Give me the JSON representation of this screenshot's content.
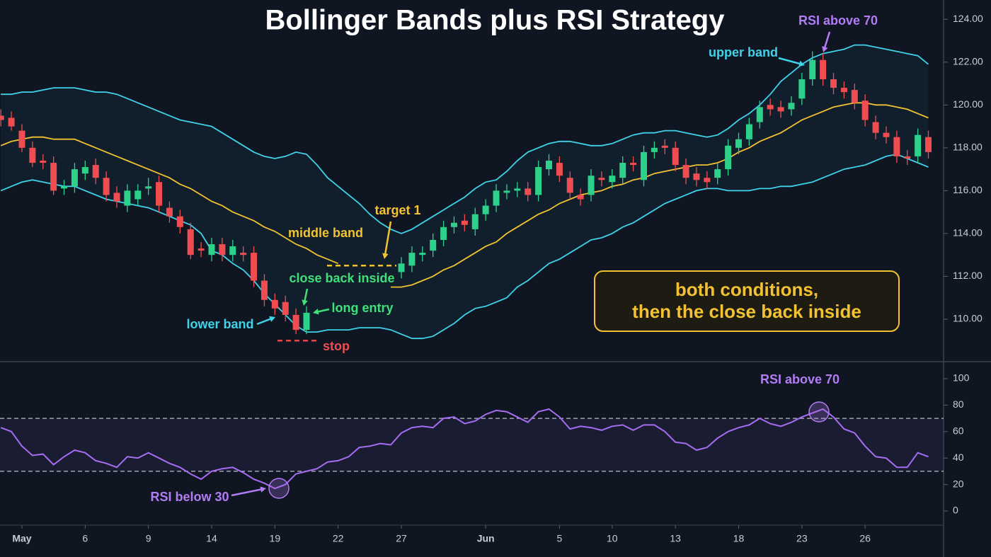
{
  "chart_data": [
    {
      "type": "candlestick",
      "title": "Bollinger Bands plus RSI Strategy",
      "up_color": "#2ed18a",
      "down_color": "#ef4d52",
      "open": [
        119.5,
        119.4,
        118.8,
        118.0,
        117.4,
        117.3,
        116.1,
        116.2,
        116.8,
        117.2,
        116.6,
        115.9,
        115.3,
        115.6,
        116.1,
        116.4,
        115.2,
        114.8,
        114.2,
        113.3,
        113.0,
        113.5,
        113.0,
        113.1,
        113.1,
        111.8,
        110.9,
        110.8,
        110.2,
        109.5,
        null,
        null,
        null,
        null,
        null,
        null,
        null,
        null,
        112.2,
        112.5,
        113.0,
        113.2,
        113.7,
        114.3,
        114.6,
        114.2,
        114.9,
        115.3,
        115.9,
        116.0,
        116.1,
        115.8,
        117.0,
        117.3,
        116.6,
        115.8,
        115.8,
        116.6,
        116.4,
        116.6,
        117.3,
        116.5,
        117.8,
        118.1,
        118.0,
        117.2,
        116.8,
        116.6,
        116.6,
        117.0,
        118.0,
        118.4,
        119.2,
        120.0,
        119.9,
        119.8,
        120.3,
        121.2,
        122.1,
        121.2,
        120.8,
        120.7,
        120.2,
        119.2,
        118.7,
        118.5,
        117.6,
        117.6,
        118.5
      ],
      "high": [
        119.8,
        119.7,
        119.1,
        118.3,
        117.7,
        117.6,
        116.5,
        117.3,
        117.4,
        117.5,
        116.9,
        116.2,
        116.3,
        116.3,
        116.6,
        116.7,
        115.5,
        115.1,
        114.5,
        113.6,
        113.8,
        113.8,
        113.7,
        113.4,
        113.4,
        112.1,
        111.2,
        111.1,
        110.5,
        110.6,
        null,
        null,
        null,
        null,
        null,
        null,
        null,
        null,
        112.9,
        113.4,
        113.4,
        114.0,
        114.6,
        114.8,
        114.9,
        115.2,
        115.6,
        116.3,
        116.3,
        116.4,
        116.4,
        117.4,
        117.7,
        117.6,
        116.9,
        116.1,
        117.0,
        116.9,
        117.0,
        117.6,
        117.6,
        118.1,
        118.3,
        118.4,
        118.3,
        117.5,
        117.1,
        116.9,
        117.3,
        118.4,
        118.7,
        119.4,
        120.2,
        120.3,
        120.2,
        120.4,
        121.5,
        122.5,
        122.4,
        121.5,
        121.1,
        121.0,
        120.5,
        119.5,
        119.0,
        118.8,
        117.9,
        118.9,
        118.8
      ],
      "low": [
        119.0,
        118.8,
        117.8,
        117.1,
        117.0,
        115.8,
        115.8,
        115.9,
        116.5,
        116.3,
        115.5,
        115.2,
        115.0,
        115.3,
        115.8,
        115.0,
        114.5,
        114.0,
        112.8,
        112.9,
        112.7,
        112.7,
        112.7,
        112.7,
        111.5,
        110.6,
        110.2,
        109.9,
        109.3,
        109.3,
        null,
        null,
        null,
        null,
        null,
        null,
        null,
        null,
        111.9,
        112.2,
        112.7,
        112.9,
        113.4,
        114.0,
        114.1,
        113.9,
        114.6,
        115.0,
        115.6,
        115.7,
        115.5,
        115.5,
        116.7,
        116.4,
        115.6,
        115.3,
        115.5,
        116.2,
        116.1,
        116.3,
        116.9,
        116.2,
        117.5,
        117.7,
        116.9,
        116.3,
        116.2,
        116.1,
        116.3,
        116.7,
        117.7,
        118.1,
        118.9,
        119.5,
        119.4,
        119.5,
        120.0,
        120.9,
        120.9,
        120.5,
        120.3,
        119.8,
        119.0,
        118.4,
        118.2,
        117.3,
        117.2,
        117.3,
        117.5
      ],
      "close": [
        119.3,
        119.0,
        118.0,
        117.3,
        117.3,
        116.0,
        116.2,
        117.0,
        117.1,
        116.6,
        115.8,
        115.5,
        116.0,
        116.0,
        116.2,
        115.3,
        114.8,
        114.3,
        113.0,
        113.2,
        113.5,
        113.0,
        113.4,
        113.0,
        111.8,
        110.9,
        110.5,
        110.2,
        109.5,
        110.3,
        null,
        null,
        null,
        null,
        null,
        null,
        null,
        null,
        112.6,
        113.1,
        113.1,
        113.7,
        114.3,
        114.5,
        114.4,
        114.9,
        115.3,
        116.0,
        116.0,
        116.1,
        115.8,
        117.1,
        117.4,
        116.7,
        115.9,
        115.6,
        116.7,
        116.5,
        116.7,
        117.3,
        117.2,
        117.8,
        118.0,
        118.0,
        117.2,
        116.6,
        116.5,
        116.4,
        117.0,
        118.1,
        118.4,
        119.1,
        119.9,
        119.8,
        119.7,
        120.1,
        121.2,
        122.1,
        121.2,
        120.8,
        120.6,
        120.1,
        119.3,
        118.7,
        118.5,
        117.6,
        117.5,
        118.6,
        117.8
      ],
      "bands": [
        {
          "color": "#3fd2e8",
          "values": [
            120.5,
            120.5,
            120.6,
            120.6,
            120.7,
            120.8,
            120.8,
            120.8,
            120.7,
            120.6,
            120.6,
            120.5,
            120.3,
            120.1,
            119.9,
            119.7,
            119.5,
            119.3,
            119.2,
            119.1,
            119.0,
            118.7,
            118.4,
            118.1,
            117.8,
            117.6,
            117.5,
            117.6,
            117.8,
            117.7,
            117.2,
            116.6,
            116.2,
            115.8,
            115.4,
            114.9,
            114.5,
            114.2,
            114.0,
            114.2,
            114.5,
            114.8,
            115.1,
            115.4,
            115.7,
            116.1,
            116.4,
            116.5,
            116.9,
            117.4,
            117.8,
            118.0,
            118.2,
            118.3,
            118.3,
            118.2,
            118.1,
            118.1,
            118.2,
            118.4,
            118.6,
            118.7,
            118.7,
            118.8,
            118.8,
            118.7,
            118.6,
            118.5,
            118.6,
            118.9,
            119.3,
            119.6,
            120.0,
            120.5,
            121.1,
            121.5,
            121.9,
            122.2,
            122.4,
            122.5,
            122.6,
            122.8,
            122.8,
            122.7,
            122.6,
            122.5,
            122.4,
            122.3,
            121.9
          ]
        },
        {
          "color": "#f2c232",
          "values": [
            118.1,
            118.3,
            118.4,
            118.5,
            118.5,
            118.4,
            118.4,
            118.4,
            118.2,
            118.0,
            117.8,
            117.6,
            117.4,
            117.2,
            117.0,
            116.8,
            116.6,
            116.3,
            116.1,
            115.8,
            115.5,
            115.3,
            115.0,
            114.8,
            114.6,
            114.3,
            114.1,
            113.8,
            113.5,
            113.3,
            113.0,
            112.8,
            112.6,
            null,
            null,
            null,
            null,
            111.5,
            111.5,
            111.6,
            111.8,
            112.0,
            112.3,
            112.5,
            112.8,
            113.1,
            113.4,
            113.6,
            114.0,
            114.3,
            114.6,
            114.9,
            115.1,
            115.4,
            115.6,
            115.8,
            115.9,
            116.0,
            116.2,
            116.3,
            116.5,
            116.6,
            116.8,
            116.9,
            117.0,
            117.1,
            117.2,
            117.2,
            117.3,
            117.5,
            117.8,
            118.0,
            118.3,
            118.5,
            118.7,
            119.0,
            119.3,
            119.5,
            119.7,
            119.9,
            120.0,
            120.1,
            120.1,
            120.0,
            120.0,
            119.9,
            119.8,
            119.6,
            119.4
          ]
        },
        {
          "color": "#3fd2e8",
          "values": [
            116.0,
            116.2,
            116.4,
            116.5,
            116.4,
            116.3,
            116.2,
            116.2,
            116.0,
            115.8,
            115.6,
            115.5,
            115.4,
            115.3,
            115.2,
            115.0,
            114.8,
            114.6,
            114.4,
            114.0,
            113.2,
            113.0,
            112.6,
            112.3,
            111.8,
            111.2,
            110.7,
            110.2,
            109.7,
            109.4,
            109.4,
            109.5,
            109.5,
            109.5,
            109.6,
            109.6,
            109.6,
            109.5,
            109.3,
            109.1,
            109.1,
            109.2,
            109.5,
            109.8,
            110.2,
            110.5,
            110.6,
            110.8,
            111.0,
            111.5,
            111.8,
            112.2,
            112.6,
            112.8,
            113.1,
            113.4,
            113.7,
            113.8,
            114.0,
            114.3,
            114.5,
            114.8,
            115.1,
            115.4,
            115.6,
            115.8,
            116.0,
            116.1,
            116.1,
            116.0,
            116.0,
            116.0,
            116.1,
            116.1,
            116.2,
            116.2,
            116.3,
            116.4,
            116.6,
            116.8,
            117.0,
            117.1,
            117.2,
            117.4,
            117.6,
            117.7,
            117.5,
            117.3,
            117.1
          ]
        }
      ],
      "levels": [
        {
          "value": 112.5,
          "color": "#f2c232"
        },
        {
          "value": 109.0,
          "color": "#e04848"
        }
      ],
      "ylim": [
        108.05,
        124.9
      ],
      "yticks": [
        {
          "value": 110,
          "label": "110.00"
        },
        {
          "value": 112,
          "label": "112.00"
        },
        {
          "value": 114,
          "label": "114.00"
        },
        {
          "value": 116,
          "label": "116.00"
        },
        {
          "value": 118,
          "label": "118.00"
        },
        {
          "value": 120,
          "label": "120.00"
        },
        {
          "value": 122,
          "label": "122.00"
        },
        {
          "value": 124,
          "label": "124.00"
        }
      ],
      "annotations": [
        {
          "text": "upper band",
          "color": "#3fd2e8"
        },
        {
          "text": "middle band",
          "color": "#f2c232"
        },
        {
          "text": "target 1",
          "color": "#f2c232"
        },
        {
          "text": "close back inside",
          "color": "#3fe07a"
        },
        {
          "text": "long entry",
          "color": "#3fe07a"
        },
        {
          "text": "lower band",
          "color": "#3fd2e8"
        },
        {
          "text": "stop",
          "color": "#ef4d52"
        },
        {
          "text": "RSI above 70",
          "color": "#b27cf5"
        }
      ],
      "callout": [
        "both conditions,",
        "then the close back inside"
      ],
      "callout_color": "#f2c232"
    },
    {
      "type": "line",
      "categories": [
        null,
        null,
        "May",
        null,
        null,
        null,
        null,
        null,
        "6",
        null,
        null,
        null,
        null,
        null,
        "9",
        null,
        null,
        null,
        null,
        null,
        "14",
        null,
        null,
        null,
        null,
        null,
        "19",
        null,
        null,
        null,
        null,
        null,
        "22",
        null,
        null,
        null,
        null,
        null,
        "27",
        null,
        null,
        null,
        null,
        null,
        null,
        null,
        "Jun",
        null,
        null,
        null,
        null,
        null,
        null,
        "5",
        null,
        null,
        null,
        null,
        "10",
        null,
        null,
        null,
        null,
        null,
        "13",
        null,
        null,
        null,
        null,
        null,
        "18",
        null,
        null,
        null,
        null,
        null,
        "23",
        null,
        null,
        null,
        null,
        null,
        "26",
        null,
        null,
        null,
        null,
        null,
        null
      ],
      "series": [
        {
          "color": "#a66cf2",
          "values": [
            63,
            60,
            49,
            42,
            43,
            35,
            41,
            46,
            44,
            38,
            36,
            33,
            41,
            40,
            44,
            40,
            36,
            33,
            28,
            24,
            30,
            32,
            33,
            29,
            24,
            21,
            17,
            20,
            28,
            30,
            32,
            37,
            38,
            41,
            48,
            49,
            51,
            50,
            59,
            63,
            64,
            63,
            70,
            71,
            66,
            68,
            73,
            76,
            75,
            71,
            67,
            75,
            77,
            71,
            62,
            64,
            63,
            61,
            64,
            65,
            61,
            65,
            65,
            60,
            52,
            51,
            46,
            48,
            55,
            60,
            63,
            65,
            70,
            66,
            64,
            67,
            71,
            74,
            77,
            71,
            62,
            59,
            49,
            41,
            40,
            33,
            33,
            44,
            41
          ]
        }
      ],
      "levels": [
        70,
        30
      ],
      "ylim": [
        -10.7,
        112.3
      ],
      "yticks": [
        0,
        20,
        40,
        60,
        80,
        100
      ],
      "annotations": [
        {
          "text": "RSI above 70",
          "color": "#b27cf5"
        },
        {
          "text": "RSI below 30",
          "color": "#b27cf5"
        }
      ]
    }
  ]
}
